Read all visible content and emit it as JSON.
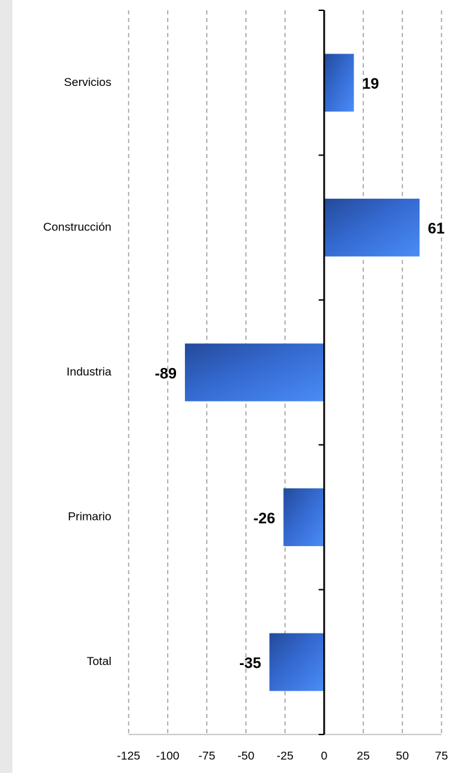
{
  "chart_data": {
    "type": "bar",
    "orientation": "horizontal",
    "categories": [
      "Servicios",
      "Construcción",
      "Industria",
      "Primario",
      "Total"
    ],
    "values": [
      19,
      61,
      -89,
      -26,
      -35
    ],
    "color": "#3d7be6",
    "xlim": [
      -125,
      75
    ],
    "xticks": [
      -125,
      -100,
      -75,
      -50,
      -25,
      0,
      25,
      50,
      75
    ],
    "grid": true
  }
}
